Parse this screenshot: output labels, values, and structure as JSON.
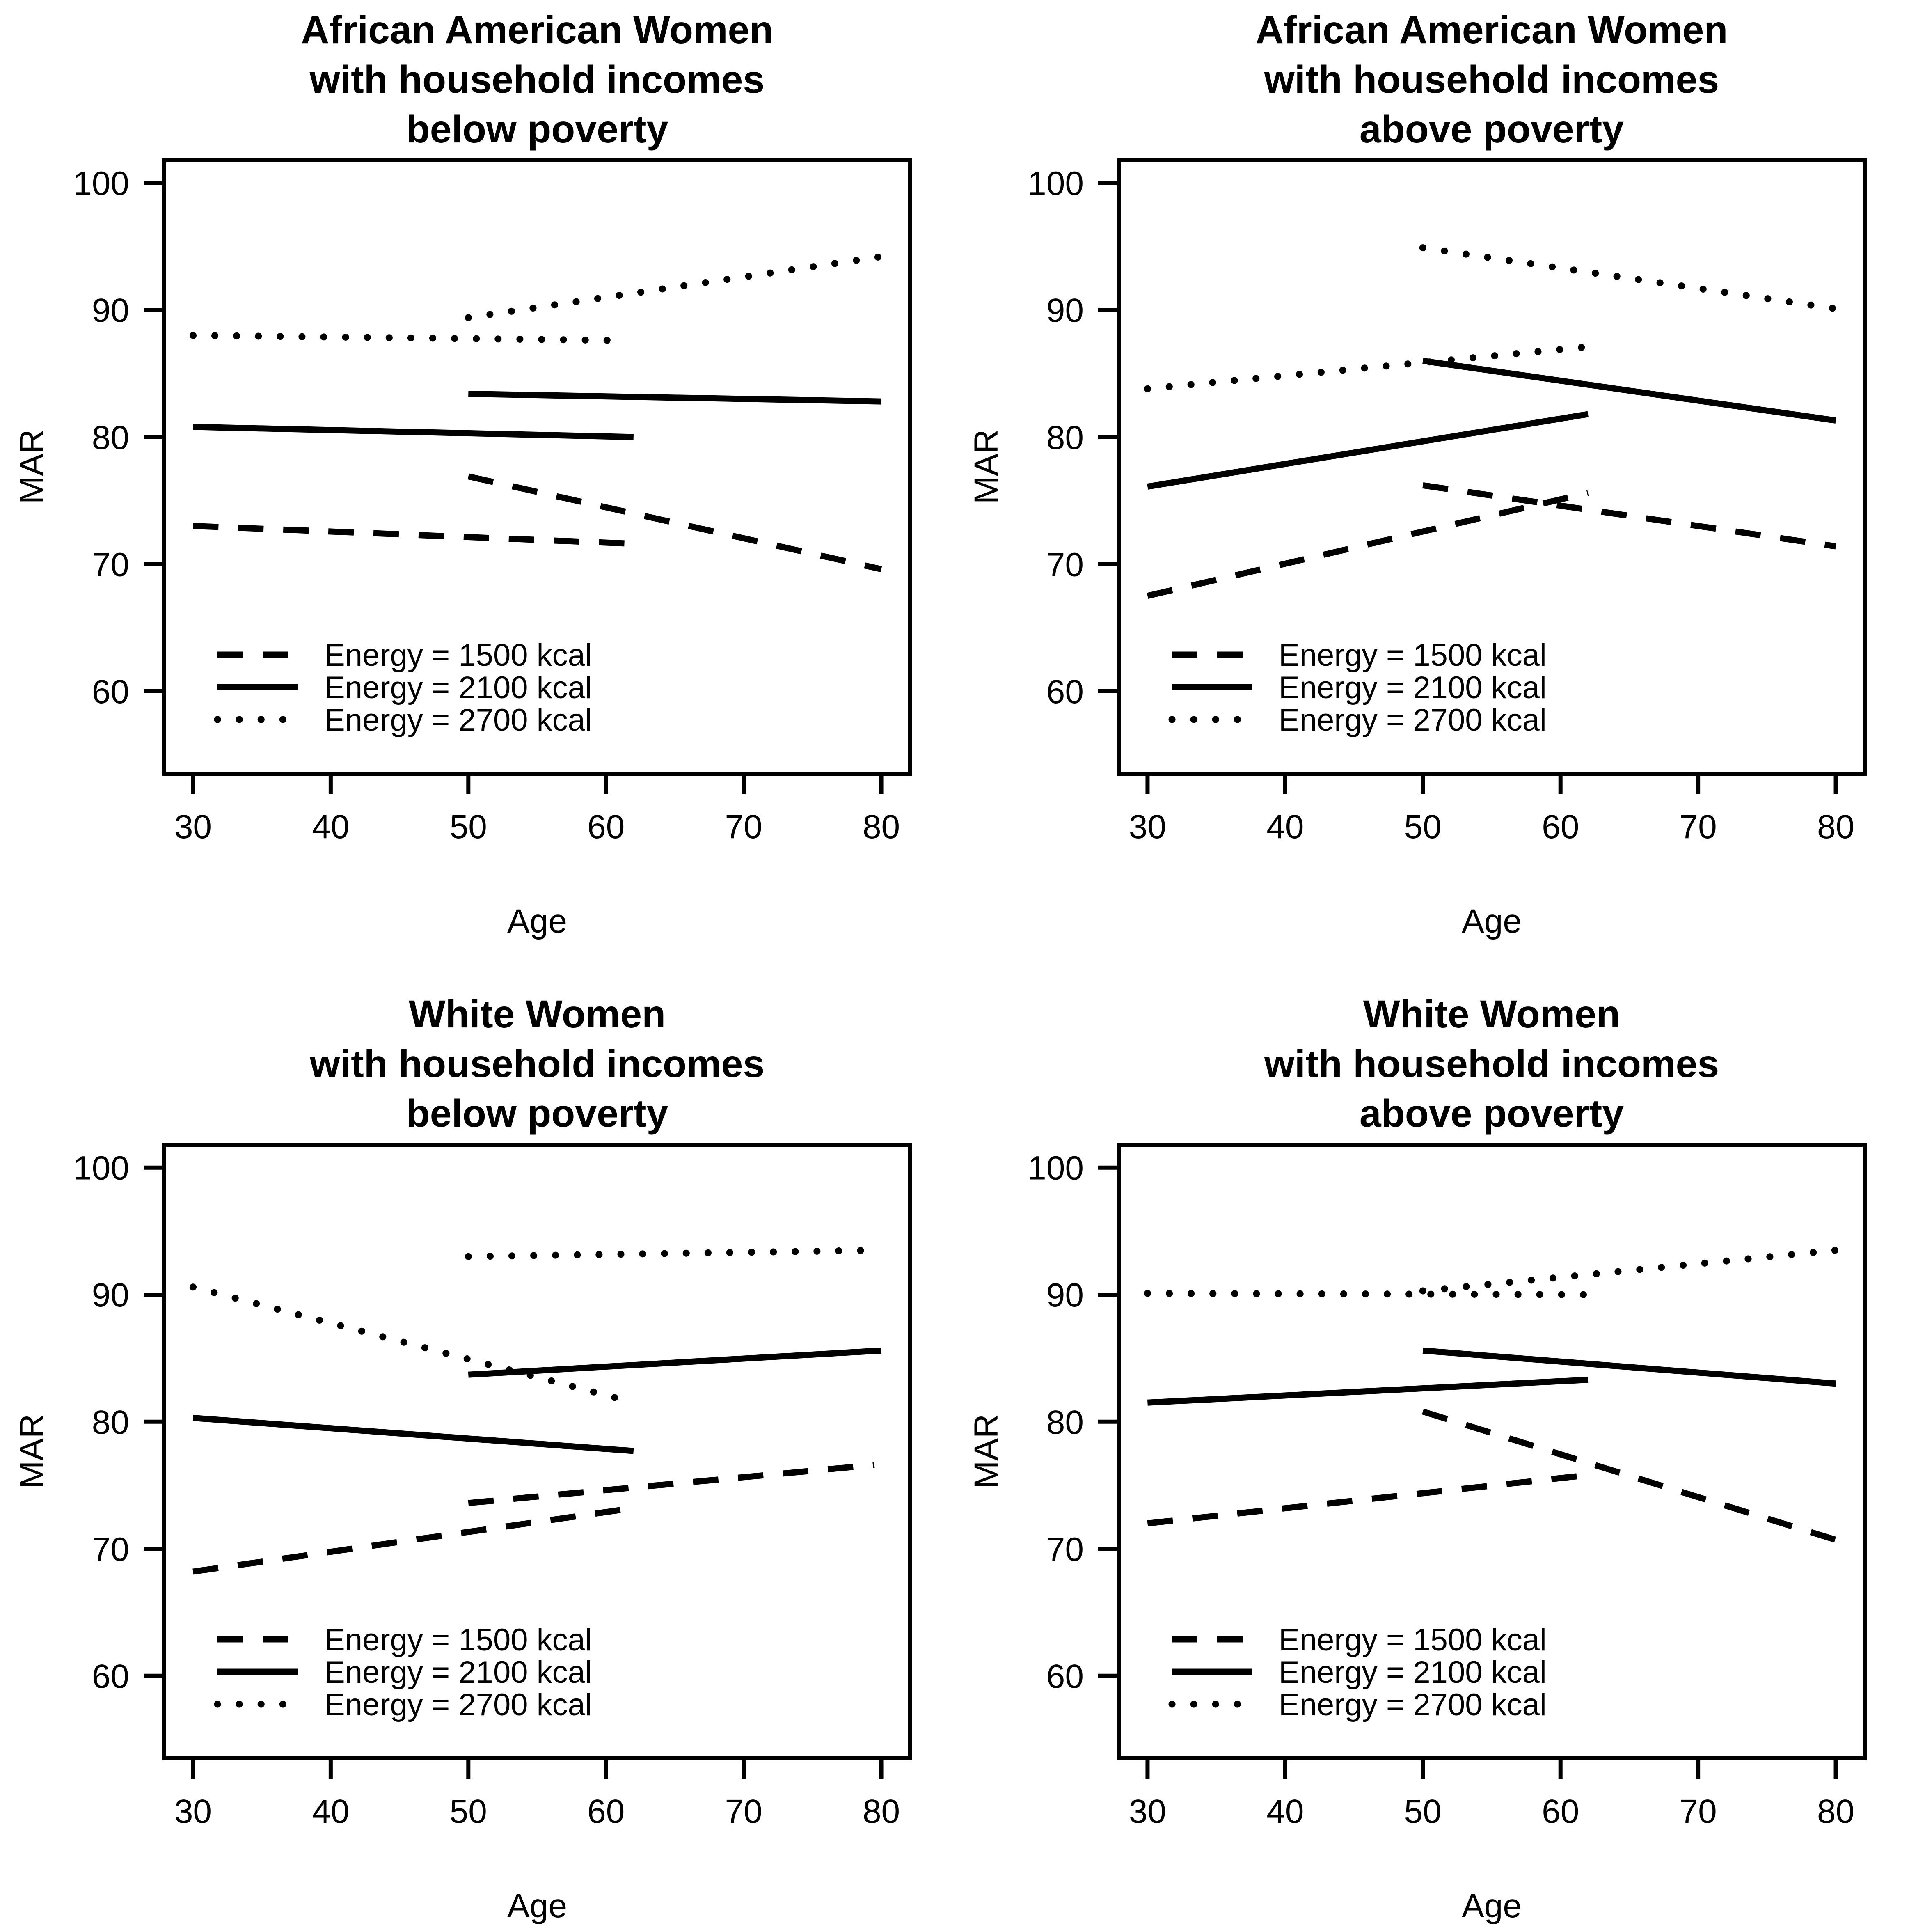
{
  "figure": {
    "background": "#ffffff",
    "line_color": "#000000",
    "xlabel": "Age",
    "ylabel": "MAR",
    "x_ticks": [
      "30",
      "40",
      "50",
      "60",
      "70",
      "80"
    ],
    "y_ticks": [
      "60",
      "70",
      "80",
      "90",
      "100"
    ],
    "legend_labels": [
      "Energy = 1500 kcal",
      "Energy = 2100 kcal",
      "Energy = 2700 kcal"
    ]
  },
  "chart_data": [
    {
      "type": "line",
      "title": [
        "African American Women",
        "with household incomes",
        "below poverty"
      ],
      "xlabel": "Age",
      "ylabel": "MAR",
      "xlim": [
        27.9,
        82.1
      ],
      "ylim": [
        53.5,
        101.8
      ],
      "x_ticks": [
        30,
        40,
        50,
        60,
        70,
        80
      ],
      "y_ticks": [
        60,
        70,
        80,
        90,
        100
      ],
      "grid": false,
      "legend_position": "bottom-left",
      "series": [
        {
          "name": "Energy = 1500 kcal",
          "style": "dashed",
          "segments": [
            [
              [
                30,
                73.0
              ],
              [
                62,
                71.6
              ]
            ],
            [
              [
                50,
                76.9
              ],
              [
                80,
                69.6
              ]
            ]
          ]
        },
        {
          "name": "Energy = 2100 kcal",
          "style": "solid",
          "segments": [
            [
              [
                30,
                80.8
              ],
              [
                62,
                80.0
              ]
            ],
            [
              [
                50,
                83.4
              ],
              [
                80,
                82.8
              ]
            ]
          ]
        },
        {
          "name": "Energy = 2700 kcal",
          "style": "dotted",
          "segments": [
            [
              [
                30,
                88.0
              ],
              [
                61.5,
                87.6
              ]
            ],
            [
              [
                50,
                89.4
              ],
              [
                80,
                94.2
              ]
            ]
          ]
        }
      ]
    },
    {
      "type": "line",
      "title": [
        "African American Women",
        "with household incomes",
        "above poverty"
      ],
      "xlabel": "Age",
      "ylabel": "MAR",
      "xlim": [
        27.9,
        82.1
      ],
      "ylim": [
        53.5,
        101.8
      ],
      "x_ticks": [
        30,
        40,
        50,
        60,
        70,
        80
      ],
      "y_ticks": [
        60,
        70,
        80,
        90,
        100
      ],
      "grid": false,
      "legend_position": "bottom-left",
      "series": [
        {
          "name": "Energy = 1500 kcal",
          "style": "dashed",
          "segments": [
            [
              [
                30,
                67.5
              ],
              [
                62,
                75.6
              ]
            ],
            [
              [
                50,
                76.2
              ],
              [
                80,
                71.4
              ]
            ]
          ]
        },
        {
          "name": "Energy = 2100 kcal",
          "style": "solid",
          "segments": [
            [
              [
                30,
                76.1
              ],
              [
                62,
                81.8
              ]
            ],
            [
              [
                50,
                86.0
              ],
              [
                80,
                81.3
              ]
            ]
          ]
        },
        {
          "name": "Energy = 2700 kcal",
          "style": "dotted",
          "segments": [
            [
              [
                30,
                83.8
              ],
              [
                62,
                87.1
              ]
            ],
            [
              [
                50,
                94.9
              ],
              [
                80,
                90.1
              ]
            ]
          ]
        }
      ]
    },
    {
      "type": "line",
      "title": [
        "White Women",
        "with household incomes",
        "below poverty"
      ],
      "xlabel": "Age",
      "ylabel": "MAR",
      "xlim": [
        27.9,
        82.1
      ],
      "ylim": [
        53.5,
        101.8
      ],
      "x_ticks": [
        30,
        40,
        50,
        60,
        70,
        80
      ],
      "y_ticks": [
        60,
        70,
        80,
        90,
        100
      ],
      "grid": false,
      "legend_position": "bottom-left",
      "series": [
        {
          "name": "Energy = 1500 kcal",
          "style": "dashed",
          "segments": [
            [
              [
                30,
                68.2
              ],
              [
                62,
                73.2
              ]
            ],
            [
              [
                50,
                73.6
              ],
              [
                79.5,
                76.6
              ]
            ]
          ]
        },
        {
          "name": "Energy = 2100 kcal",
          "style": "solid",
          "segments": [
            [
              [
                30,
                80.3
              ],
              [
                62,
                77.7
              ]
            ],
            [
              [
                50,
                83.7
              ],
              [
                80,
                85.6
              ]
            ]
          ]
        },
        {
          "name": "Energy = 2700 kcal",
          "style": "dotted",
          "segments": [
            [
              [
                30,
                90.6
              ],
              [
                61,
                81.8
              ]
            ],
            [
              [
                50,
                93.0
              ],
              [
                80,
                93.5
              ]
            ]
          ]
        }
      ]
    },
    {
      "type": "line",
      "title": [
        "White Women",
        "with household incomes",
        "above poverty"
      ],
      "xlabel": "Age",
      "ylabel": "MAR",
      "xlim": [
        27.9,
        82.1
      ],
      "ylim": [
        53.5,
        101.8
      ],
      "x_ticks": [
        30,
        40,
        50,
        60,
        70,
        80
      ],
      "y_ticks": [
        60,
        70,
        80,
        90,
        100
      ],
      "grid": false,
      "legend_position": "bottom-left",
      "series": [
        {
          "name": "Energy = 1500 kcal",
          "style": "dashed",
          "segments": [
            [
              [
                30,
                72.0
              ],
              [
                62,
                75.8
              ]
            ],
            [
              [
                50,
                80.8
              ],
              [
                80,
                70.7
              ]
            ]
          ]
        },
        {
          "name": "Energy = 2100 kcal",
          "style": "solid",
          "segments": [
            [
              [
                30,
                81.5
              ],
              [
                62,
                83.3
              ]
            ],
            [
              [
                50,
                85.6
              ],
              [
                80,
                83.0
              ]
            ]
          ]
        },
        {
          "name": "Energy = 2700 kcal",
          "style": "dotted",
          "segments": [
            [
              [
                30,
                90.1
              ],
              [
                62,
                90.0
              ]
            ],
            [
              [
                50,
                90.3
              ],
              [
                80,
                93.5
              ]
            ]
          ]
        }
      ]
    }
  ]
}
